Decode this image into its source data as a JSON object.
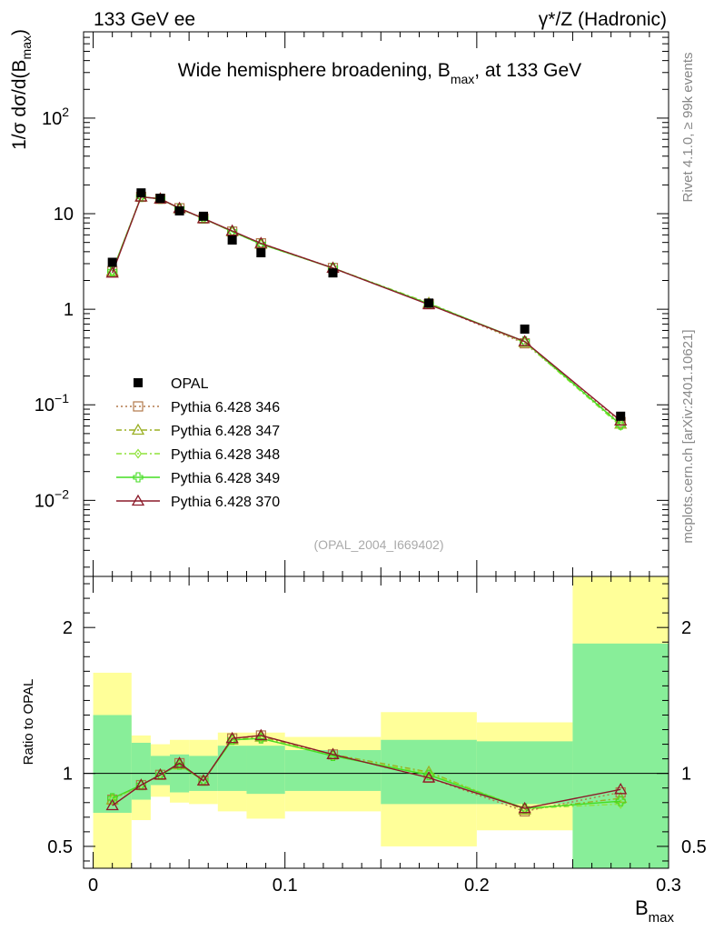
{
  "header": {
    "left": "133 GeV ee",
    "right": "γ*/Z (Hadronic)"
  },
  "side_labels": {
    "top": "Rivet 4.1.0, ≥ 99k events",
    "bottom": "mcplots.cern.ch [arXiv:2401.10621]"
  },
  "chart_data": [
    {
      "type": "line",
      "title": "Wide hemisphere broadening, B_max, at 133 GeV",
      "title_parts": {
        "main": "Wide hemisphere broadening, B",
        "sub": "max",
        "tail": ", at 133 GeV"
      },
      "ylabel": {
        "prefix": "1/σ  dσ/d(B",
        "sub": "max",
        "suffix": ")"
      },
      "yscale": "log",
      "ylim": [
        0.0016,
        800
      ],
      "xlim": [
        -0.005,
        0.3
      ],
      "yticks": [
        {
          "value": 0.01,
          "base": "10",
          "exp": "−2"
        },
        {
          "value": 0.1,
          "base": "10",
          "exp": "−1"
        },
        {
          "value": 1,
          "label": "1"
        },
        {
          "value": 10,
          "label": "10"
        },
        {
          "value": 100,
          "base": "10",
          "exp": "2"
        }
      ],
      "watermark": "(OPAL_2004_I669402)",
      "legend_position": "lower-left",
      "x": [
        0.01,
        0.025,
        0.035,
        0.045,
        0.0575,
        0.0725,
        0.0875,
        0.125,
        0.175,
        0.225,
        0.275
      ],
      "series": [
        {
          "name": "OPAL",
          "color": "#000000",
          "marker": "square",
          "dash": "none",
          "values": [
            3.1,
            16.5,
            14.5,
            10.7,
            9.4,
            5.3,
            3.9,
            2.4,
            1.16,
            0.62,
            0.076
          ]
        },
        {
          "name": "Pythia 6.428 346",
          "color": "#B2794A",
          "marker": "open-square",
          "dash": "2,3",
          "values": [
            2.5,
            15.0,
            14.3,
            11.4,
            8.9,
            6.5,
            4.9,
            2.7,
            1.13,
            0.44,
            0.066
          ]
        },
        {
          "name": "Pythia 6.428 347",
          "color": "#9BB025",
          "marker": "open-triangle",
          "dash": "6,3,2,3",
          "values": [
            2.5,
            15.0,
            14.3,
            11.3,
            8.9,
            6.5,
            4.8,
            2.7,
            1.16,
            0.45,
            0.063
          ]
        },
        {
          "name": "Pythia 6.428 348",
          "color": "#8FE23A",
          "marker": "open-diamond",
          "dash": "6,3,2,3",
          "values": [
            2.5,
            15.0,
            14.3,
            11.3,
            8.9,
            6.5,
            4.8,
            2.7,
            1.15,
            0.45,
            0.06
          ]
        },
        {
          "name": "Pythia 6.428 349",
          "color": "#44DD22",
          "marker": "open-cross",
          "dash": "none",
          "values": [
            2.5,
            15.0,
            14.3,
            11.3,
            8.9,
            6.5,
            4.8,
            2.7,
            1.14,
            0.46,
            0.062
          ]
        },
        {
          "name": "Pythia 6.428 370",
          "color": "#8B1A2A",
          "marker": "open-triangle",
          "dash": "none",
          "values": [
            2.4,
            15.0,
            14.3,
            11.4,
            8.9,
            6.6,
            4.9,
            2.7,
            1.12,
            0.46,
            0.068
          ]
        }
      ]
    },
    {
      "type": "line",
      "title": "",
      "xlabel": {
        "main": "B",
        "sub": "max"
      },
      "ylabel": "Ratio to OPAL",
      "ylim": [
        0.35,
        2.35
      ],
      "xlim": [
        -0.005,
        0.3
      ],
      "yticks": [
        0.5,
        1,
        2
      ],
      "ytick_labels": [
        "0.5",
        "1",
        "2"
      ],
      "xticks": [
        0,
        0.1,
        0.2,
        0.3
      ],
      "xtick_labels": [
        "0",
        "0.1",
        "0.2",
        "0.3"
      ],
      "reference_line": 1,
      "bins": [
        0,
        0.02,
        0.03,
        0.04,
        0.05,
        0.065,
        0.08,
        0.1,
        0.15,
        0.2,
        0.25,
        0.3
      ],
      "band_yellow": [
        [
          0.0,
          1.69
        ],
        [
          0.68,
          1.26
        ],
        [
          0.84,
          1.2
        ],
        [
          0.8,
          1.23
        ],
        [
          0.79,
          1.23
        ],
        [
          0.74,
          1.28
        ],
        [
          0.69,
          1.28
        ],
        [
          0.74,
          1.25
        ],
        [
          0.5,
          1.42
        ],
        [
          0.61,
          1.35
        ],
        [
          0.0,
          2.35
        ]
      ],
      "band_green": [
        [
          0.73,
          1.4
        ],
        [
          0.82,
          1.21
        ],
        [
          0.92,
          1.12
        ],
        [
          0.87,
          1.13
        ],
        [
          0.88,
          1.12
        ],
        [
          0.88,
          1.19
        ],
        [
          0.86,
          1.19
        ],
        [
          0.88,
          1.16
        ],
        [
          0.79,
          1.23
        ],
        [
          0.79,
          1.22
        ],
        [
          0.0,
          1.89
        ]
      ],
      "x": [
        0.01,
        0.025,
        0.035,
        0.045,
        0.0575,
        0.0725,
        0.0875,
        0.125,
        0.175,
        0.225,
        0.275
      ],
      "series": [
        {
          "name": "Pythia 6.428 346",
          "color": "#B2794A",
          "marker": "open-square",
          "dash": "2,3",
          "values": [
            0.82,
            0.92,
            0.99,
            1.07,
            0.95,
            1.24,
            1.26,
            1.13,
            0.97,
            0.74,
            0.87
          ]
        },
        {
          "name": "Pythia 6.428 347",
          "color": "#9BB025",
          "marker": "open-triangle",
          "dash": "6,3,2,3",
          "values": [
            0.82,
            0.92,
            0.99,
            1.06,
            0.95,
            1.23,
            1.25,
            1.13,
            1.01,
            0.75,
            0.83
          ]
        },
        {
          "name": "Pythia 6.428 348",
          "color": "#8FE23A",
          "marker": "open-diamond",
          "dash": "6,3,2,3",
          "values": [
            0.82,
            0.92,
            0.99,
            1.06,
            0.95,
            1.23,
            1.24,
            1.12,
            1.0,
            0.76,
            0.79
          ]
        },
        {
          "name": "Pythia 6.428 349",
          "color": "#44DD22",
          "marker": "open-cross",
          "dash": "none",
          "values": [
            0.83,
            0.92,
            0.99,
            1.06,
            0.95,
            1.23,
            1.24,
            1.12,
            0.99,
            0.76,
            0.81
          ]
        },
        {
          "name": "Pythia 6.428 370",
          "color": "#8B1A2A",
          "marker": "open-triangle",
          "dash": "none",
          "values": [
            0.78,
            0.92,
            0.99,
            1.07,
            0.95,
            1.24,
            1.26,
            1.13,
            0.97,
            0.76,
            0.89
          ]
        }
      ]
    }
  ]
}
